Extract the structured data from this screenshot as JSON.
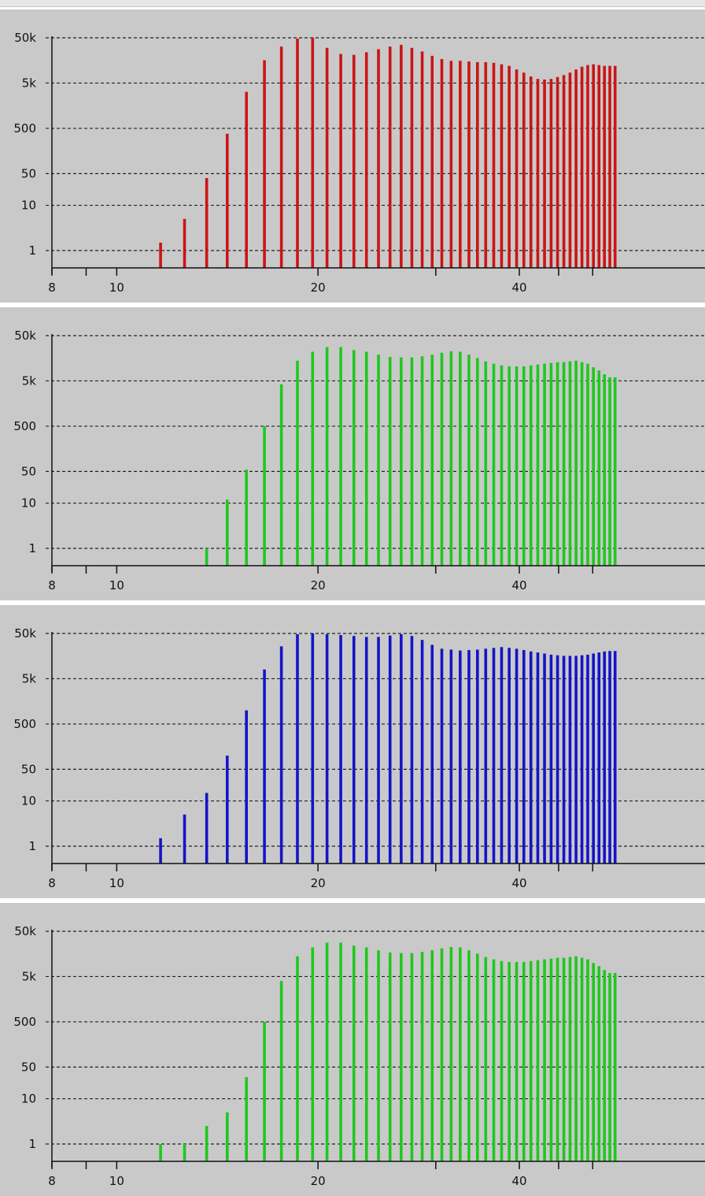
{
  "chart_data": [
    {
      "type": "bar",
      "xscale": "log",
      "yscale": "log",
      "xlim": [
        8,
        56
      ],
      "ylim": [
        0.3,
        50000
      ],
      "yticks": [
        {
          "v": 1,
          "label": "1"
        },
        {
          "v": 10,
          "label": "10"
        },
        {
          "v": 50,
          "label": "50"
        },
        {
          "v": 500,
          "label": "500"
        },
        {
          "v": 5000,
          "label": "5k"
        },
        {
          "v": 50000,
          "label": "50k"
        }
      ],
      "xticks": [
        {
          "v": 8,
          "label": "8"
        },
        {
          "v": 9,
          "label": ""
        },
        {
          "v": 10,
          "label": "10"
        },
        {
          "v": 20,
          "label": "20"
        },
        {
          "v": 30,
          "label": ""
        },
        {
          "v": 40,
          "label": ""
        }
      ],
      "xtick_labels_extra": [
        {
          "v": 40,
          "label": "40"
        }
      ],
      "grid": true,
      "color": "#cc1414",
      "x": [
        11.63,
        12.63,
        13.63,
        14.63,
        15.63,
        16.63,
        17.63,
        18.63,
        19.63,
        20.63,
        21.63,
        22.63,
        23.63,
        24.63,
        25.63,
        26.63,
        27.63,
        28.63,
        29.63,
        30.63,
        31.63,
        32.63,
        33.63,
        34.63,
        35.63,
        36.63,
        37.63,
        38.63,
        39.63,
        40.63,
        41.63,
        42.63,
        43.63,
        44.63,
        45.63,
        46.63,
        47.63,
        48.63,
        49.63,
        50.63,
        51.63,
        52.63,
        53.63,
        54.63,
        55.63
      ],
      "values": [
        1.5,
        5,
        40,
        380,
        3200,
        16000,
        32000,
        48000,
        50000,
        30000,
        22000,
        21000,
        24000,
        28000,
        32000,
        35000,
        30000,
        25000,
        20000,
        17000,
        15500,
        15500,
        15000,
        14500,
        14500,
        14000,
        13000,
        12000,
        10000,
        8500,
        7000,
        6200,
        6000,
        6200,
        6800,
        7500,
        8500,
        10000,
        11500,
        12500,
        13000,
        12500,
        12000,
        12000,
        12000
      ]
    },
    {
      "type": "bar",
      "xscale": "log",
      "yscale": "log",
      "xlim": [
        8,
        56
      ],
      "ylim": [
        0.3,
        50000
      ],
      "yticks": [
        {
          "v": 1,
          "label": "1"
        },
        {
          "v": 10,
          "label": "10"
        },
        {
          "v": 50,
          "label": "50"
        },
        {
          "v": 500,
          "label": "500"
        },
        {
          "v": 5000,
          "label": "5k"
        },
        {
          "v": 50000,
          "label": "50k"
        }
      ],
      "xticks": [
        {
          "v": 8,
          "label": "8"
        },
        {
          "v": 9,
          "label": ""
        },
        {
          "v": 10,
          "label": "10"
        },
        {
          "v": 20,
          "label": "20"
        },
        {
          "v": 30,
          "label": ""
        },
        {
          "v": 40,
          "label": ""
        }
      ],
      "xtick_labels_extra": [
        {
          "v": 40,
          "label": "40"
        }
      ],
      "grid": true,
      "color": "#1ec81e",
      "x": [
        13.63,
        14.63,
        15.63,
        16.63,
        17.63,
        18.63,
        19.63,
        20.63,
        21.63,
        22.63,
        23.63,
        24.63,
        25.63,
        26.63,
        27.63,
        28.63,
        29.63,
        30.63,
        31.63,
        32.63,
        33.63,
        34.63,
        35.63,
        36.63,
        37.63,
        38.63,
        39.63,
        40.63,
        41.63,
        42.63,
        43.63,
        44.63,
        45.63,
        46.63,
        47.63,
        48.63,
        49.63,
        50.63,
        51.63,
        52.63,
        53.63,
        54.63,
        55.63
      ],
      "values": [
        1,
        12,
        55,
        500,
        4200,
        14000,
        22000,
        28000,
        28000,
        24000,
        22000,
        19000,
        17000,
        16500,
        16500,
        17500,
        19000,
        21000,
        22500,
        22000,
        19000,
        16000,
        13500,
        12000,
        11000,
        10500,
        10500,
        10500,
        11000,
        11500,
        12000,
        12500,
        13000,
        13000,
        13500,
        14000,
        13000,
        12000,
        10000,
        8500,
        7000,
        6000,
        6000
      ]
    },
    {
      "type": "bar",
      "xscale": "log",
      "yscale": "log",
      "xlim": [
        8,
        56
      ],
      "ylim": [
        0.3,
        50000
      ],
      "yticks": [
        {
          "v": 1,
          "label": "1"
        },
        {
          "v": 10,
          "label": "10"
        },
        {
          "v": 50,
          "label": "50"
        },
        {
          "v": 500,
          "label": "500"
        },
        {
          "v": 5000,
          "label": "5k"
        },
        {
          "v": 50000,
          "label": "50k"
        }
      ],
      "xticks": [
        {
          "v": 8,
          "label": "8"
        },
        {
          "v": 9,
          "label": ""
        },
        {
          "v": 10,
          "label": "10"
        },
        {
          "v": 20,
          "label": "20"
        },
        {
          "v": 30,
          "label": ""
        },
        {
          "v": 40,
          "label": ""
        }
      ],
      "xtick_labels_extra": [
        {
          "v": 40,
          "label": "40"
        }
      ],
      "grid": true,
      "color": "#1414c8",
      "x": [
        11.63,
        12.63,
        13.63,
        14.63,
        15.63,
        16.63,
        17.63,
        18.63,
        19.63,
        20.63,
        21.63,
        22.63,
        23.63,
        24.63,
        25.63,
        26.63,
        27.63,
        28.63,
        29.63,
        30.63,
        31.63,
        32.63,
        33.63,
        34.63,
        35.63,
        36.63,
        37.63,
        38.63,
        39.63,
        40.63,
        41.63,
        42.63,
        43.63,
        44.63,
        45.63,
        46.63,
        47.63,
        48.63,
        49.63,
        50.63,
        51.63,
        52.63,
        53.63,
        54.63,
        55.63
      ],
      "values": [
        1.5,
        5,
        15,
        100,
        1000,
        8000,
        26000,
        48000,
        50000,
        48000,
        46000,
        44000,
        42000,
        42000,
        45000,
        48000,
        44000,
        36000,
        28000,
        23000,
        22000,
        21000,
        21500,
        22000,
        23000,
        24000,
        25000,
        24000,
        23000,
        21500,
        20000,
        19000,
        18000,
        17000,
        16500,
        16000,
        16000,
        16000,
        16500,
        17000,
        18000,
        19000,
        20000,
        20500,
        20500
      ]
    },
    {
      "type": "bar",
      "xscale": "log",
      "yscale": "log",
      "xlim": [
        8,
        56
      ],
      "ylim": [
        0.3,
        50000
      ],
      "yticks": [
        {
          "v": 1,
          "label": "1"
        },
        {
          "v": 10,
          "label": "10"
        },
        {
          "v": 50,
          "label": "50"
        },
        {
          "v": 500,
          "label": "500"
        },
        {
          "v": 5000,
          "label": "5k"
        },
        {
          "v": 50000,
          "label": "50k"
        }
      ],
      "xticks": [
        {
          "v": 8,
          "label": "8"
        },
        {
          "v": 9,
          "label": ""
        },
        {
          "v": 10,
          "label": "10"
        },
        {
          "v": 20,
          "label": "20"
        },
        {
          "v": 30,
          "label": ""
        },
        {
          "v": 40,
          "label": ""
        }
      ],
      "xtick_labels_extra": [
        {
          "v": 40,
          "label": "40"
        }
      ],
      "grid": true,
      "color": "#1ec81e",
      "x": [
        11.63,
        12.63,
        13.63,
        14.63,
        15.63,
        16.63,
        17.63,
        18.63,
        19.63,
        20.63,
        21.63,
        22.63,
        23.63,
        24.63,
        25.63,
        26.63,
        27.63,
        28.63,
        29.63,
        30.63,
        31.63,
        32.63,
        33.63,
        34.63,
        35.63,
        36.63,
        37.63,
        38.63,
        39.63,
        40.63,
        41.63,
        42.63,
        43.63,
        44.63,
        45.63,
        46.63,
        47.63,
        48.63,
        49.63,
        50.63,
        51.63,
        52.63,
        53.63,
        54.63,
        55.63
      ],
      "values": [
        1,
        1,
        2.5,
        5,
        30,
        500,
        4000,
        14000,
        22000,
        28000,
        28000,
        24000,
        22000,
        19000,
        17000,
        16500,
        16500,
        17500,
        19000,
        21000,
        22500,
        22000,
        19000,
        16000,
        13500,
        12000,
        11000,
        10500,
        10500,
        10500,
        11000,
        11500,
        12000,
        12500,
        13000,
        13000,
        13500,
        14000,
        13000,
        12000,
        10000,
        8500,
        7000,
        6000,
        6000
      ]
    }
  ]
}
